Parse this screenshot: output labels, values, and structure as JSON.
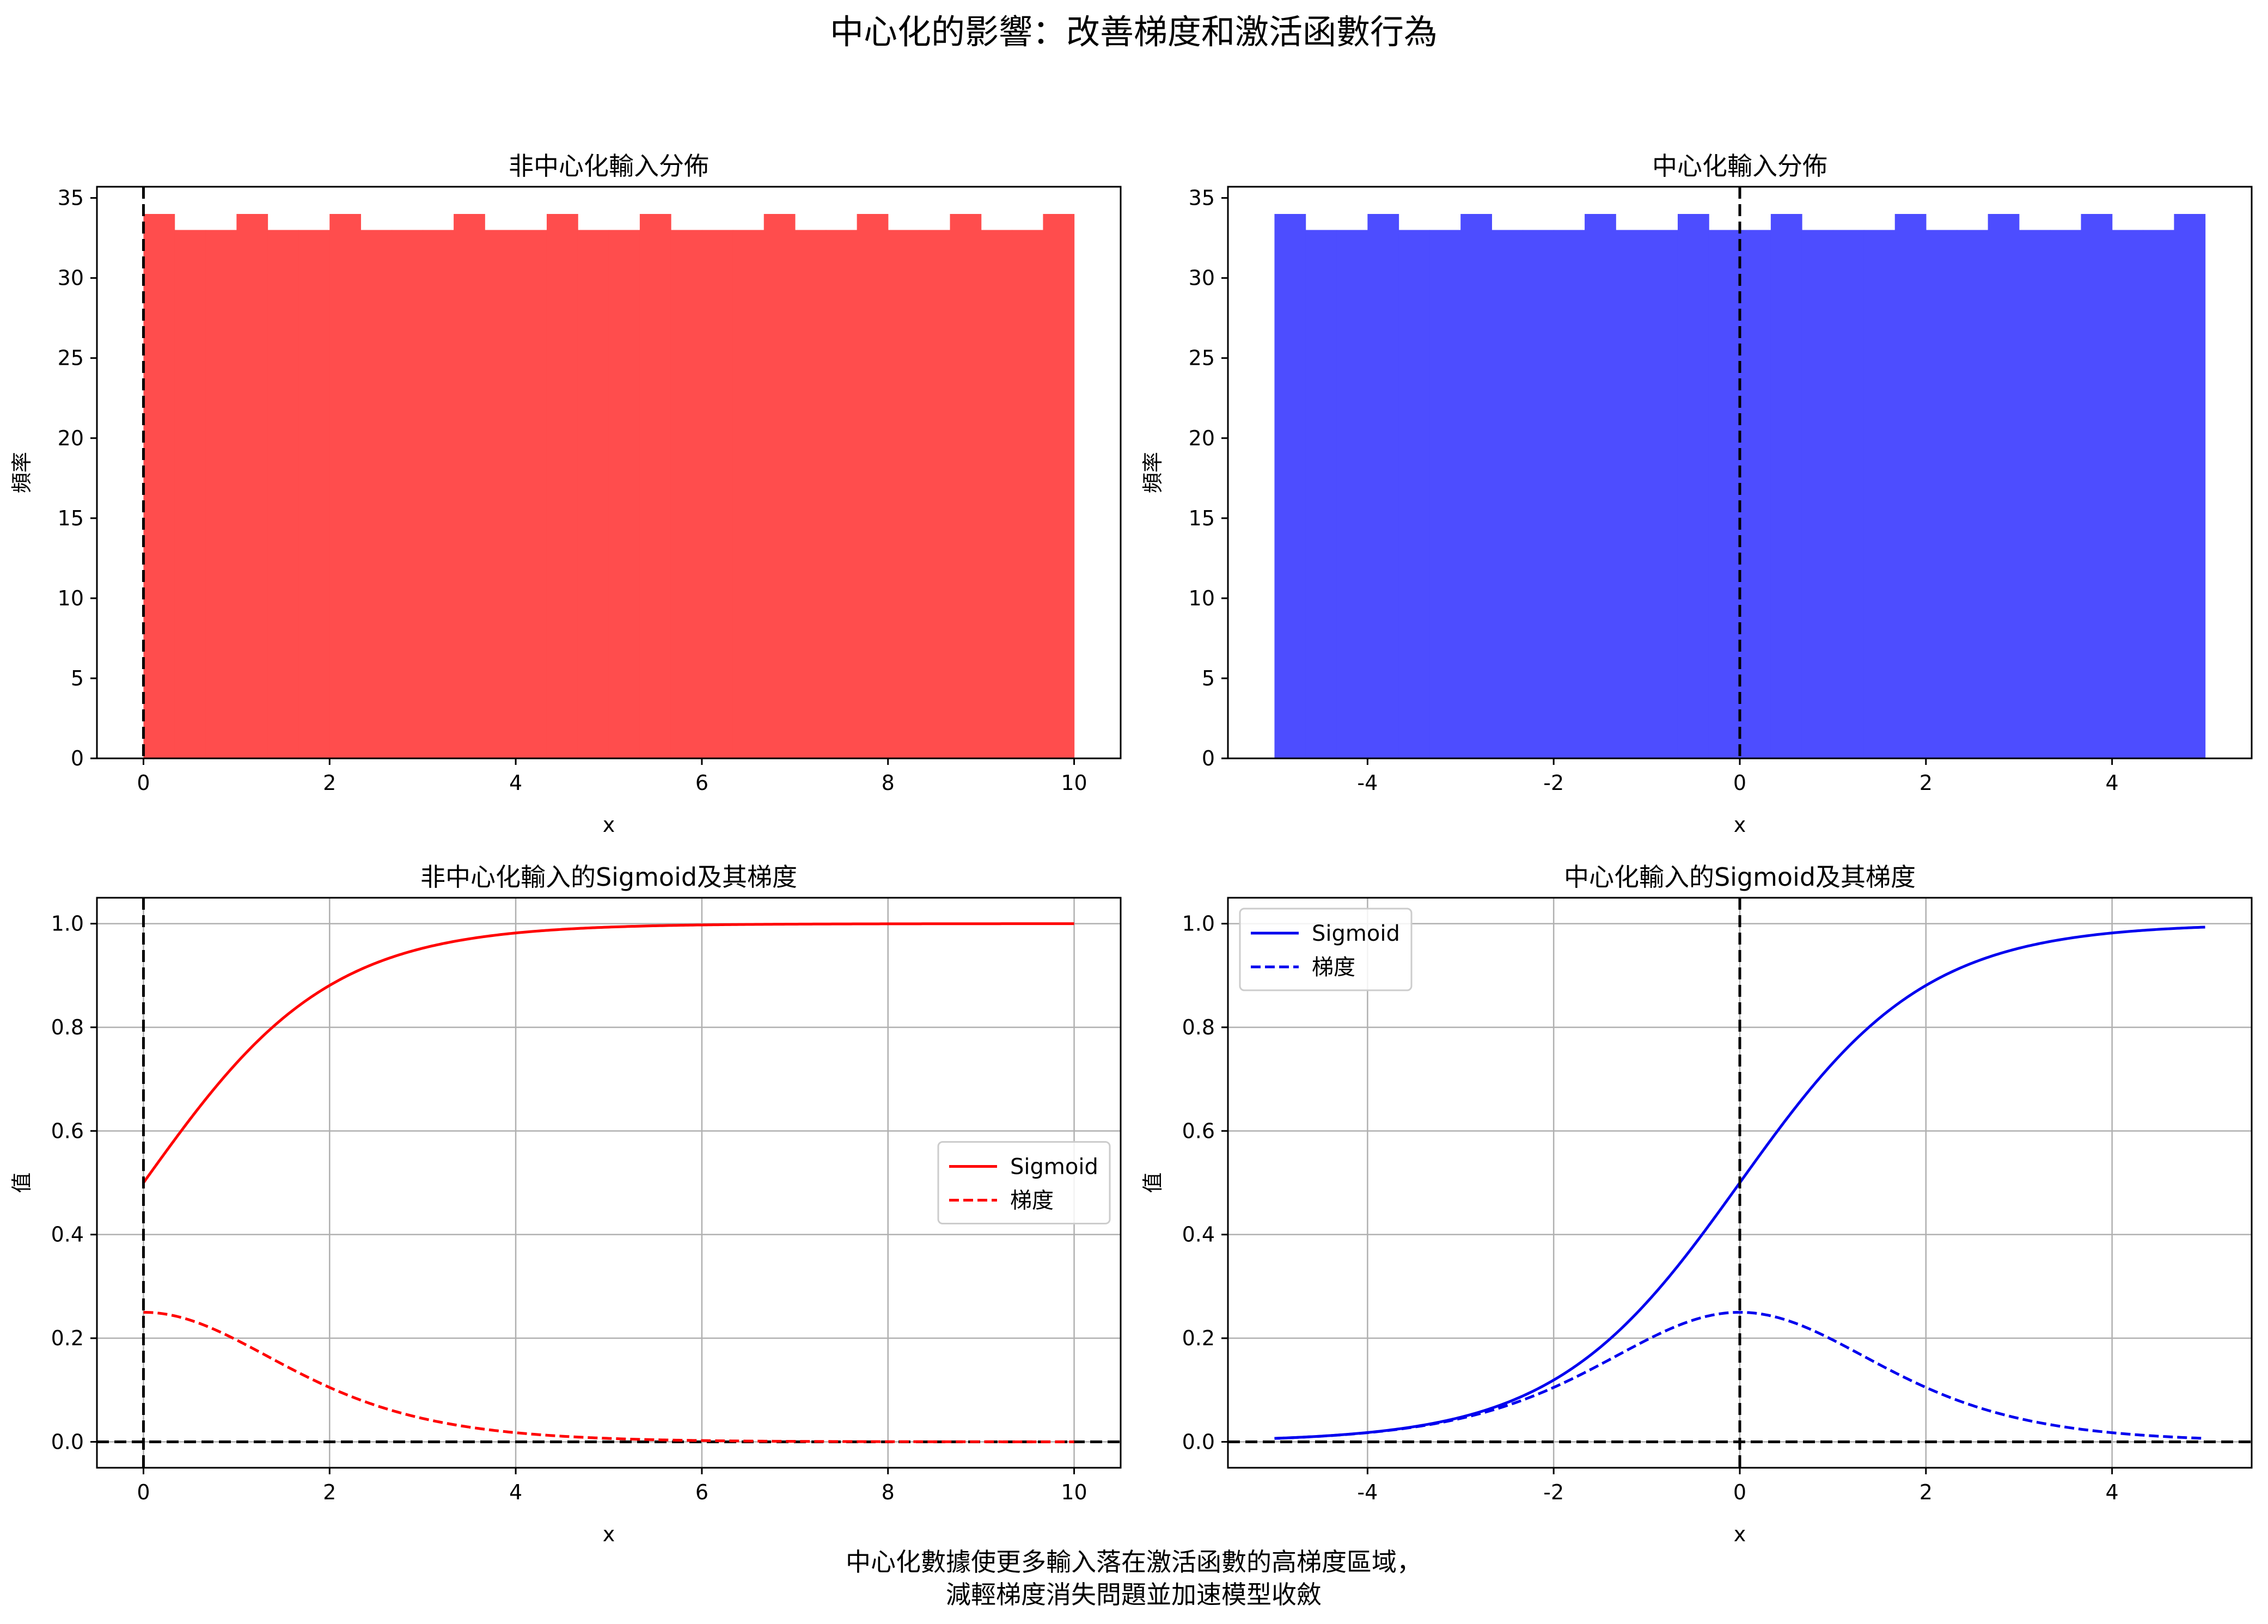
{
  "figure": {
    "suptitle": "中心化的影響：改善梯度和激活函數行為",
    "footnote_line1": "中心化數據使更多輸入落在激活函數的高梯度區域，",
    "footnote_line2": "減輕梯度消失問題並加速模型收斂"
  },
  "colors": {
    "red_hist": "#ff4d4d",
    "blue_hist": "#4d4dff",
    "red_line": "#ff0000",
    "blue_line": "#0000ee",
    "grid": "#b0b0b0",
    "ref_line": "#000000"
  },
  "chart_data": [
    {
      "type": "bar",
      "title": "非中心化輸入分佈",
      "xlabel": "x",
      "ylabel": "頻率",
      "xlim": [
        -0.5,
        10.5
      ],
      "ylim": [
        0,
        35.7
      ],
      "xticks": [
        0,
        2,
        4,
        6,
        8,
        10
      ],
      "xtick_labels": [
        "0",
        "2",
        "4",
        "6",
        "8",
        "10"
      ],
      "yticks": [
        0,
        5,
        10,
        15,
        20,
        25,
        30,
        35
      ],
      "ytick_labels": [
        "0",
        "5",
        "10",
        "15",
        "20",
        "25",
        "30",
        "35"
      ],
      "grid": false,
      "bin_start": 0,
      "bin_width": 0.3333,
      "counts": [
        34,
        33,
        33,
        34,
        33,
        33,
        34,
        33,
        33,
        33,
        34,
        33,
        33,
        34,
        33,
        33,
        34,
        33,
        33,
        33,
        34,
        33,
        33,
        34,
        33,
        33,
        34,
        33,
        33,
        34
      ],
      "color": "red",
      "vline_x": 0
    },
    {
      "type": "bar",
      "title": "中心化輸入分佈",
      "xlabel": "x",
      "ylabel": "頻率",
      "xlim": [
        -5.5,
        5.5
      ],
      "ylim": [
        0,
        35.7
      ],
      "xticks": [
        -4,
        -2,
        0,
        2,
        4
      ],
      "xtick_labels": [
        "-4",
        "-2",
        "0",
        "2",
        "4"
      ],
      "yticks": [
        0,
        5,
        10,
        15,
        20,
        25,
        30,
        35
      ],
      "ytick_labels": [
        "0",
        "5",
        "10",
        "15",
        "20",
        "25",
        "30",
        "35"
      ],
      "grid": false,
      "bin_start": -5,
      "bin_width": 0.3333,
      "counts": [
        34,
        33,
        33,
        34,
        33,
        33,
        34,
        33,
        33,
        33,
        34,
        33,
        33,
        34,
        33,
        33,
        34,
        33,
        33,
        33,
        34,
        33,
        33,
        34,
        33,
        33,
        34,
        33,
        33,
        34
      ],
      "color": "blue",
      "vline_x": 0
    },
    {
      "type": "line",
      "title": "非中心化輸入的Sigmoid及其梯度",
      "xlabel": "x",
      "ylabel": "值",
      "xlim": [
        -0.5,
        10.5
      ],
      "ylim": [
        -0.05,
        1.05
      ],
      "xticks": [
        0,
        2,
        4,
        6,
        8,
        10
      ],
      "xtick_labels": [
        "0",
        "2",
        "4",
        "6",
        "8",
        "10"
      ],
      "yticks": [
        0,
        0.2,
        0.4,
        0.6,
        0.8,
        1.0
      ],
      "ytick_labels": [
        "0.0",
        "0.2",
        "0.4",
        "0.6",
        "0.8",
        "1.0"
      ],
      "grid": true,
      "x_range": [
        0,
        10
      ],
      "series": [
        {
          "name": "Sigmoid",
          "function": "sigmoid",
          "style": "solid"
        },
        {
          "name": "梯度",
          "function": "sigmoid_gradient",
          "style": "dashed"
        }
      ],
      "color": "red",
      "legend_position": "center-right",
      "vline_x": 0,
      "hline_y": 0
    },
    {
      "type": "line",
      "title": "中心化輸入的Sigmoid及其梯度",
      "xlabel": "x",
      "ylabel": "值",
      "xlim": [
        -5.5,
        5.5
      ],
      "ylim": [
        -0.05,
        1.05
      ],
      "xticks": [
        -4,
        -2,
        0,
        2,
        4
      ],
      "xtick_labels": [
        "-4",
        "-2",
        "0",
        "2",
        "4"
      ],
      "yticks": [
        0,
        0.2,
        0.4,
        0.6,
        0.8,
        1.0
      ],
      "ytick_labels": [
        "0.0",
        "0.2",
        "0.4",
        "0.6",
        "0.8",
        "1.0"
      ],
      "grid": true,
      "x_range": [
        -5,
        5
      ],
      "series": [
        {
          "name": "Sigmoid",
          "function": "sigmoid",
          "style": "solid"
        },
        {
          "name": "梯度",
          "function": "sigmoid_gradient",
          "style": "dashed"
        }
      ],
      "color": "blue",
      "legend_position": "top-left",
      "vline_x": 0,
      "hline_y": 0
    }
  ]
}
